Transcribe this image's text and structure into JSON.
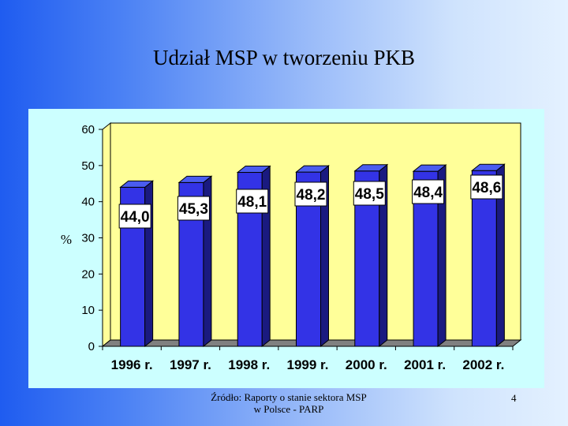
{
  "title": "Udział MSP w tworzeniu PKB",
  "footer": {
    "source_line1": "Źródło: Raporty o stanie sektora MSP",
    "source_line2": "w Polsce - PARP"
  },
  "slide_number": "4",
  "colors": {
    "plot_background": "#ffff99",
    "chart_background": "#ccffff",
    "bar_front": "#3333e6",
    "bar_top": "#4a5cf0",
    "bar_side": "#1a1a80",
    "floor": "#808080"
  },
  "chart_data": {
    "type": "bar",
    "categories": [
      "1996 r.",
      "1997 r.",
      "1998 r.",
      "1999 r.",
      "2000 r.",
      "2001 r.",
      "2002 r."
    ],
    "values": [
      44.0,
      45.3,
      48.1,
      48.2,
      48.5,
      48.4,
      48.6
    ],
    "data_labels": [
      "44,0",
      "45,3",
      "48,1",
      "48,2",
      "48,5",
      "48,4",
      "48,6"
    ],
    "title": "",
    "xlabel": "",
    "ylabel": "%",
    "ylim": [
      0,
      60
    ],
    "yticks": [
      0,
      10,
      20,
      30,
      40,
      50,
      60
    ],
    "grid": false,
    "style": "3d-column"
  }
}
